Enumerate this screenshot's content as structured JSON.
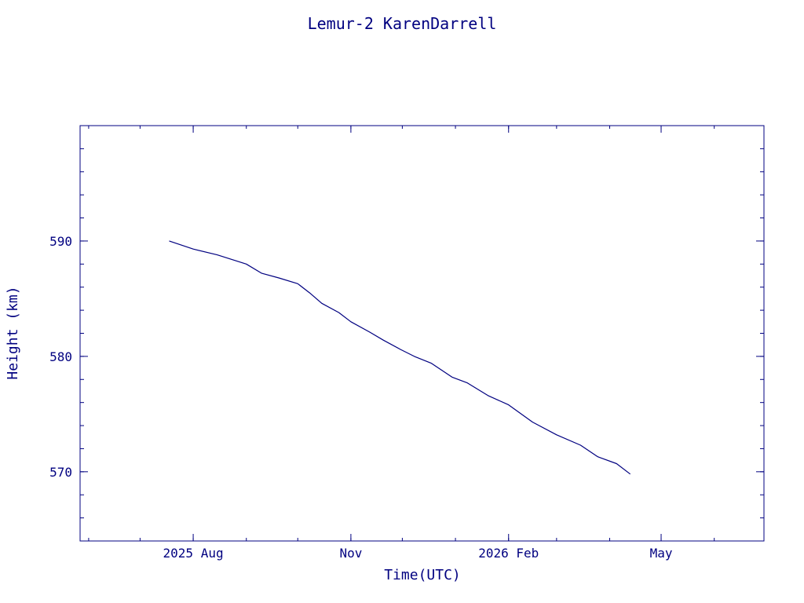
{
  "chart_data": {
    "type": "line",
    "title": "Lemur-2 KarenDarrell",
    "xlabel": "Time(UTC)",
    "ylabel": "Height (km)",
    "color": "#000080",
    "grid": false,
    "xlim": [
      "2025-05-27",
      "2026-06-30"
    ],
    "ylim": [
      564,
      600
    ],
    "x_ticks": [
      {
        "date": "2025-08-01",
        "label": "2025 Aug"
      },
      {
        "date": "2025-11-01",
        "label": "Nov"
      },
      {
        "date": "2026-02-01",
        "label": "2026 Feb"
      },
      {
        "date": "2026-05-01",
        "label": "May"
      }
    ],
    "y_ticks": [
      {
        "value": 570,
        "label": "570"
      },
      {
        "value": 580,
        "label": "580"
      },
      {
        "value": 590,
        "label": "590"
      }
    ],
    "series": [
      {
        "x": [
          "2025-07-18",
          "2025-08-01",
          "2025-08-15",
          "2025-09-01",
          "2025-09-10",
          "2025-09-20",
          "2025-10-01",
          "2025-10-08",
          "2025-10-15",
          "2025-10-25",
          "2025-11-01",
          "2025-11-12",
          "2025-11-20",
          "2025-11-30",
          "2025-12-08",
          "2025-12-18",
          "2025-12-30",
          "2026-01-08",
          "2026-01-20",
          "2026-02-01",
          "2026-02-15",
          "2026-03-01",
          "2026-03-15",
          "2026-03-25",
          "2026-04-05",
          "2026-04-13"
        ],
        "y": [
          590.0,
          589.3,
          588.8,
          588.0,
          587.2,
          586.8,
          586.3,
          585.5,
          584.6,
          583.8,
          583.0,
          582.1,
          581.4,
          580.6,
          580.0,
          579.4,
          578.2,
          577.7,
          576.6,
          575.8,
          574.3,
          573.2,
          572.3,
          571.3,
          570.7,
          569.8
        ]
      }
    ]
  }
}
